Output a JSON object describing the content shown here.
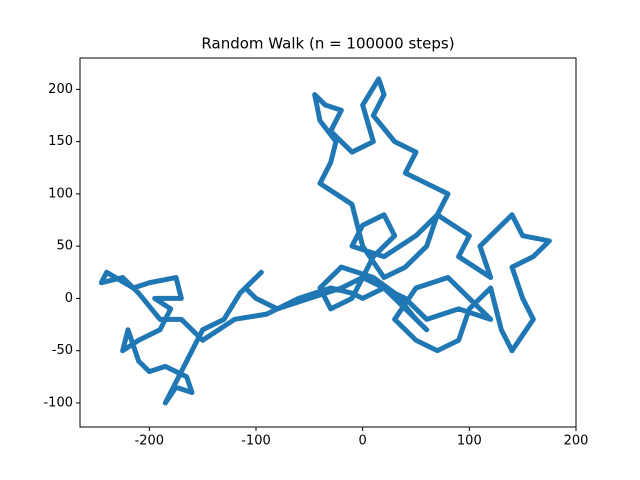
{
  "chart_data": {
    "type": "line",
    "title": "Random Walk (n = 100000 steps)",
    "color": "#1f77b4",
    "x": [
      0,
      20,
      40,
      60,
      50,
      30,
      10,
      -20,
      -40,
      -30,
      -10,
      10,
      30,
      20,
      0,
      -10,
      20,
      50,
      70,
      60,
      40,
      20,
      0,
      -10,
      -40,
      -30,
      -25,
      -40,
      -45,
      -35,
      -20,
      -30,
      -10,
      10,
      0,
      15,
      20,
      10,
      30,
      50,
      40,
      60,
      80,
      70,
      100,
      90,
      120,
      110,
      140,
      150,
      175,
      160,
      140,
      150,
      160,
      140,
      130,
      120,
      100,
      90,
      70,
      50,
      30,
      50,
      80,
      100,
      120,
      90,
      60,
      40,
      20,
      0,
      -20,
      -50,
      -80,
      -100,
      -110,
      -95,
      -115,
      -130,
      -150,
      -160,
      -170,
      -185,
      -175,
      -160,
      -165,
      -185,
      -200,
      -210,
      -220,
      -225,
      -210,
      -190,
      -180,
      -195,
      -170,
      -175,
      -200,
      -215,
      -240,
      -245,
      -225,
      -210,
      -190,
      -170,
      -150,
      -120,
      -90,
      -60,
      -30,
      -10,
      0
    ],
    "values": [
      0,
      10,
      -10,
      -30,
      -20,
      5,
      20,
      30,
      10,
      -10,
      0,
      40,
      60,
      80,
      70,
      50,
      40,
      60,
      80,
      50,
      30,
      20,
      50,
      90,
      110,
      130,
      150,
      170,
      195,
      185,
      180,
      160,
      140,
      150,
      185,
      210,
      195,
      175,
      150,
      140,
      120,
      110,
      100,
      80,
      60,
      40,
      20,
      50,
      80,
      60,
      55,
      40,
      30,
      0,
      -20,
      -50,
      -30,
      10,
      -10,
      -40,
      -50,
      -40,
      -20,
      10,
      20,
      0,
      -20,
      -10,
      -20,
      0,
      10,
      20,
      10,
      0,
      -10,
      0,
      10,
      25,
      5,
      -20,
      -30,
      -50,
      -70,
      -100,
      -85,
      -90,
      -75,
      -65,
      -70,
      -60,
      -30,
      -50,
      -40,
      -30,
      -10,
      0,
      0,
      20,
      15,
      10,
      25,
      15,
      20,
      5,
      -20,
      -20,
      -40,
      -20,
      -15,
      0,
      10,
      5,
      0
    ],
    "xlim": [
      -265,
      200
    ],
    "xticks": [
      -200,
      -100,
      0,
      100,
      200
    ],
    "ylim": [
      -123,
      230
    ],
    "yticks": [
      -100,
      -50,
      0,
      50,
      100,
      150,
      200
    ]
  }
}
